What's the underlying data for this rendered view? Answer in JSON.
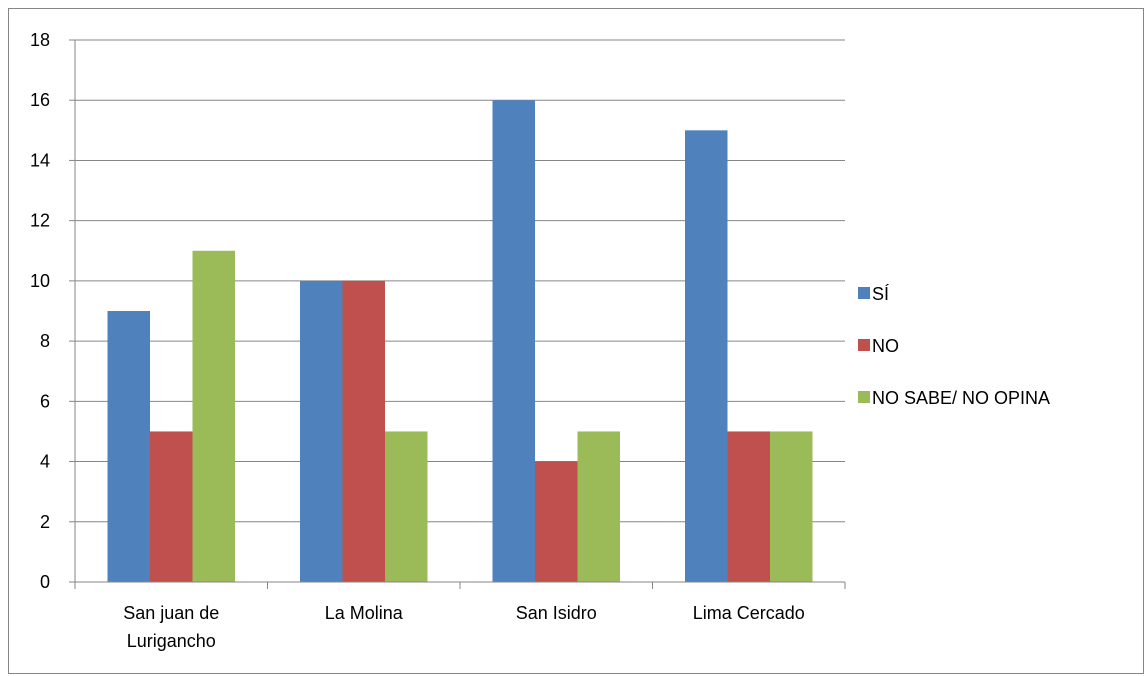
{
  "chart_data": {
    "type": "bar",
    "categories": [
      [
        "San juan de",
        "Lurigancho"
      ],
      [
        "La Molina"
      ],
      [
        "San Isidro"
      ],
      [
        "Lima Cercado"
      ]
    ],
    "series": [
      {
        "name": "SÍ",
        "color": "#4F81BD",
        "values": [
          9,
          10,
          16,
          15
        ]
      },
      {
        "name": "NO",
        "color": "#C0504D",
        "values": [
          5,
          10,
          4,
          5
        ]
      },
      {
        "name": "NO SABE/ NO OPINA",
        "color": "#9BBB59",
        "values": [
          11,
          5,
          5,
          5
        ]
      }
    ],
    "ylim": [
      0,
      18
    ],
    "yticks": [
      0,
      2,
      4,
      6,
      8,
      10,
      12,
      14,
      16,
      18
    ],
    "grid": true,
    "legend": "right",
    "title": "",
    "xlabel": "",
    "ylabel": ""
  }
}
